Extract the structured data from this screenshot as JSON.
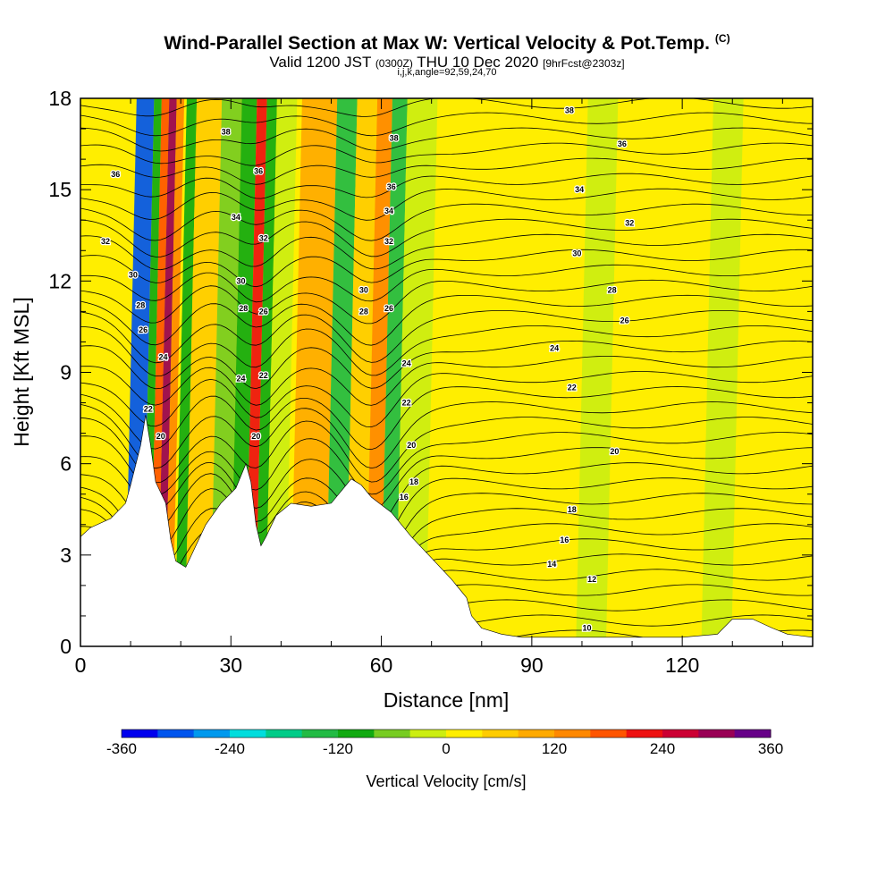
{
  "header": {
    "title": "Wind-Parallel Section at Max W: Vertical Velocity & Pot.Temp.",
    "copyright": "(C)",
    "valid_prefix": "Valid 1200 JST",
    "valid_utc": "(0300Z)",
    "valid_date": "THU 10 Dec 2020",
    "forecast": "[9hrFcst@2303z]",
    "params": "i,j,k,angle=92,59,24,70"
  },
  "chart_data": {
    "type": "heatmap",
    "xlabel": "Distance [nm]",
    "ylabel": "Height [Kft MSL]",
    "xlim": [
      0,
      146
    ],
    "ylim": [
      0,
      18
    ],
    "xticks": [
      0,
      30,
      60,
      90,
      120
    ],
    "yticks": [
      0,
      3,
      6,
      9,
      12,
      15,
      18
    ],
    "colorbar": {
      "label": "Vertical Velocity [cm/s]",
      "ticks": [
        -360,
        -240,
        -120,
        0,
        120,
        240,
        360
      ],
      "range": [
        -360,
        360
      ],
      "colors": [
        "#0000ee",
        "#0055ee",
        "#0099ee",
        "#00dddd",
        "#00cc88",
        "#22bb44",
        "#11aa11",
        "#77cc22",
        "#ccee11",
        "#ffee00",
        "#ffcc00",
        "#ffaa00",
        "#ff8800",
        "#ff5500",
        "#ee1111",
        "#cc0033",
        "#990055",
        "#660088"
      ]
    },
    "w_bands": [
      {
        "x": [
          10,
          13.5
        ],
        "w": -300
      },
      {
        "x": [
          13.5,
          15
        ],
        "w": -90
      },
      {
        "x": [
          15,
          16.5
        ],
        "w": 180
      },
      {
        "x": [
          16.5,
          18
        ],
        "w": 300
      },
      {
        "x": [
          18,
          19.5
        ],
        "w": 120
      },
      {
        "x": [
          20,
          22
        ],
        "w": -120
      },
      {
        "x": [
          22,
          27
        ],
        "w": 40
      },
      {
        "x": [
          27,
          31
        ],
        "w": -60
      },
      {
        "x": [
          31,
          34
        ],
        "w": -90
      },
      {
        "x": [
          34,
          36
        ],
        "w": 200
      },
      {
        "x": [
          36,
          38
        ],
        "w": -100
      },
      {
        "x": [
          38,
          42
        ],
        "w": -40
      },
      {
        "x": [
          43,
          50
        ],
        "w": 110
      },
      {
        "x": [
          50,
          54
        ],
        "w": -130
      },
      {
        "x": [
          54,
          58
        ],
        "w": 60
      },
      {
        "x": [
          58,
          61
        ],
        "w": 130
      },
      {
        "x": [
          61,
          64
        ],
        "w": -140
      },
      {
        "x": [
          64,
          70
        ],
        "w": -40
      },
      {
        "x": [
          73,
          80
        ],
        "w": 20
      },
      {
        "x": [
          86,
          92
        ],
        "w": 20
      },
      {
        "x": [
          100,
          106
        ],
        "w": -30
      },
      {
        "x": [
          112,
          118
        ],
        "w": 20
      },
      {
        "x": [
          125,
          131
        ],
        "w": -30
      },
      {
        "x": [
          136,
          143
        ],
        "w": 20
      }
    ],
    "terrain": [
      [
        0,
        3.6
      ],
      [
        2,
        3.9
      ],
      [
        6,
        4.2
      ],
      [
        9,
        4.7
      ],
      [
        10,
        5.3
      ],
      [
        12,
        6.6
      ],
      [
        13,
        7.6
      ],
      [
        14,
        6.6
      ],
      [
        15,
        5.4
      ],
      [
        17,
        4.7
      ],
      [
        18,
        3.5
      ],
      [
        19,
        2.8
      ],
      [
        21,
        2.6
      ],
      [
        23,
        3.3
      ],
      [
        25,
        4.0
      ],
      [
        28,
        4.7
      ],
      [
        31,
        5.2
      ],
      [
        33,
        6.0
      ],
      [
        34,
        5.4
      ],
      [
        35,
        4.0
      ],
      [
        36,
        3.3
      ],
      [
        37,
        3.6
      ],
      [
        39,
        4.3
      ],
      [
        42,
        4.7
      ],
      [
        46,
        4.6
      ],
      [
        50,
        4.7
      ],
      [
        54,
        5.5
      ],
      [
        56,
        5.3
      ],
      [
        58,
        4.9
      ],
      [
        62,
        4.4
      ],
      [
        66,
        3.6
      ],
      [
        70,
        2.9
      ],
      [
        74,
        2.2
      ],
      [
        77,
        1.6
      ],
      [
        78,
        1.0
      ],
      [
        80,
        0.6
      ],
      [
        84,
        0.4
      ],
      [
        88,
        0.3
      ],
      [
        95,
        0.3
      ],
      [
        105,
        0.3
      ],
      [
        115,
        0.3
      ],
      [
        120,
        0.3
      ],
      [
        127,
        0.4
      ],
      [
        130,
        0.9
      ],
      [
        134,
        0.9
      ],
      [
        138,
        0.6
      ],
      [
        141,
        0.4
      ],
      [
        146,
        0.3
      ]
    ],
    "theta_labels": [
      {
        "value": "36",
        "x": 7,
        "y": 15.5
      },
      {
        "value": "32",
        "x": 5,
        "y": 13.3
      },
      {
        "value": "30",
        "x": 10.5,
        "y": 12.2
      },
      {
        "value": "28",
        "x": 12,
        "y": 11.2
      },
      {
        "value": "26",
        "x": 12.5,
        "y": 10.4
      },
      {
        "value": "24",
        "x": 16.5,
        "y": 9.5
      },
      {
        "value": "22",
        "x": 13.5,
        "y": 7.8
      },
      {
        "value": "20",
        "x": 16,
        "y": 6.9
      },
      {
        "value": "38",
        "x": 29,
        "y": 16.9
      },
      {
        "value": "36",
        "x": 35.5,
        "y": 15.6
      },
      {
        "value": "34",
        "x": 31,
        "y": 14.1
      },
      {
        "value": "32",
        "x": 36.5,
        "y": 13.4
      },
      {
        "value": "30",
        "x": 32,
        "y": 12.0
      },
      {
        "value": "28",
        "x": 32.5,
        "y": 11.1
      },
      {
        "value": "26",
        "x": 36.5,
        "y": 11.0
      },
      {
        "value": "24",
        "x": 32,
        "y": 8.8
      },
      {
        "value": "22",
        "x": 36.5,
        "y": 8.9
      },
      {
        "value": "20",
        "x": 35,
        "y": 6.9
      },
      {
        "value": "38",
        "x": 62.5,
        "y": 16.7
      },
      {
        "value": "36",
        "x": 62,
        "y": 15.1
      },
      {
        "value": "34",
        "x": 61.5,
        "y": 14.3
      },
      {
        "value": "32",
        "x": 61.5,
        "y": 13.3
      },
      {
        "value": "30",
        "x": 56.5,
        "y": 11.7
      },
      {
        "value": "28",
        "x": 56.5,
        "y": 11.0
      },
      {
        "value": "26",
        "x": 61.5,
        "y": 11.1
      },
      {
        "value": "24",
        "x": 65,
        "y": 9.3
      },
      {
        "value": "22",
        "x": 65,
        "y": 8.0
      },
      {
        "value": "20",
        "x": 66,
        "y": 6.6
      },
      {
        "value": "18",
        "x": 66.5,
        "y": 5.4
      },
      {
        "value": "16",
        "x": 64.5,
        "y": 4.9
      },
      {
        "value": "38",
        "x": 97.5,
        "y": 17.6
      },
      {
        "value": "36",
        "x": 108,
        "y": 16.5
      },
      {
        "value": "34",
        "x": 99.5,
        "y": 15.0
      },
      {
        "value": "32",
        "x": 109.5,
        "y": 13.9
      },
      {
        "value": "30",
        "x": 99,
        "y": 12.9
      },
      {
        "value": "28",
        "x": 106,
        "y": 11.7
      },
      {
        "value": "26",
        "x": 108.5,
        "y": 10.7
      },
      {
        "value": "24",
        "x": 94.5,
        "y": 9.8
      },
      {
        "value": "22",
        "x": 98,
        "y": 8.5
      },
      {
        "value": "20",
        "x": 106.5,
        "y": 6.4
      },
      {
        "value": "18",
        "x": 98,
        "y": 4.5
      },
      {
        "value": "16",
        "x": 96.5,
        "y": 3.5
      },
      {
        "value": "14",
        "x": 94,
        "y": 2.7
      },
      {
        "value": "12",
        "x": 102,
        "y": 2.2
      },
      {
        "value": "10",
        "x": 101,
        "y": 0.6
      }
    ]
  }
}
